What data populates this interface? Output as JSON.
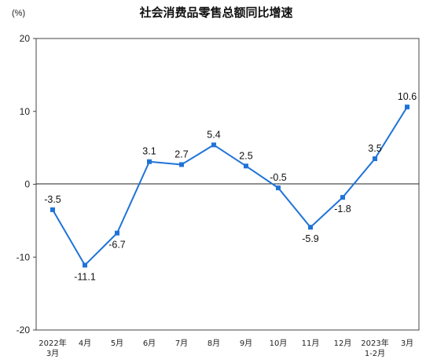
{
  "chart_data": {
    "type": "line",
    "title": "社会消费品零售总额同比增速",
    "unit_label": "(%)",
    "ylim": [
      -20,
      20
    ],
    "yticks": [
      "20",
      "10",
      "0",
      "-10",
      "-20"
    ],
    "ytick_values": [
      20,
      10,
      0,
      -10,
      -20
    ],
    "categories": [
      [
        "2022年",
        "3月"
      ],
      [
        "4月"
      ],
      [
        "5月"
      ],
      [
        "6月"
      ],
      [
        "7月"
      ],
      [
        "8月"
      ],
      [
        "9月"
      ],
      [
        "10月"
      ],
      [
        "11月"
      ],
      [
        "12月"
      ],
      [
        "2023年",
        "1-2月"
      ],
      [
        "3月"
      ]
    ],
    "series": [
      {
        "values": [
          -3.5,
          -11.1,
          -6.7,
          3.1,
          2.7,
          5.4,
          2.5,
          -0.5,
          -5.9,
          -1.8,
          3.5,
          10.6
        ],
        "labels": [
          "-3.5",
          "-11.1",
          "-6.7",
          "3.1",
          "2.7",
          "5.4",
          "2.5",
          "-0.5",
          "-5.9",
          "-1.8",
          "3.5",
          "10.6"
        ]
      }
    ],
    "label_side": [
      "above",
      "below",
      "below",
      "above",
      "above",
      "above",
      "above",
      "above",
      "below",
      "below",
      "above",
      "above"
    ],
    "grid": false,
    "legend": "none",
    "line_color": "#1f73d8",
    "marker_color": "#1f73d8",
    "marker": "square"
  }
}
